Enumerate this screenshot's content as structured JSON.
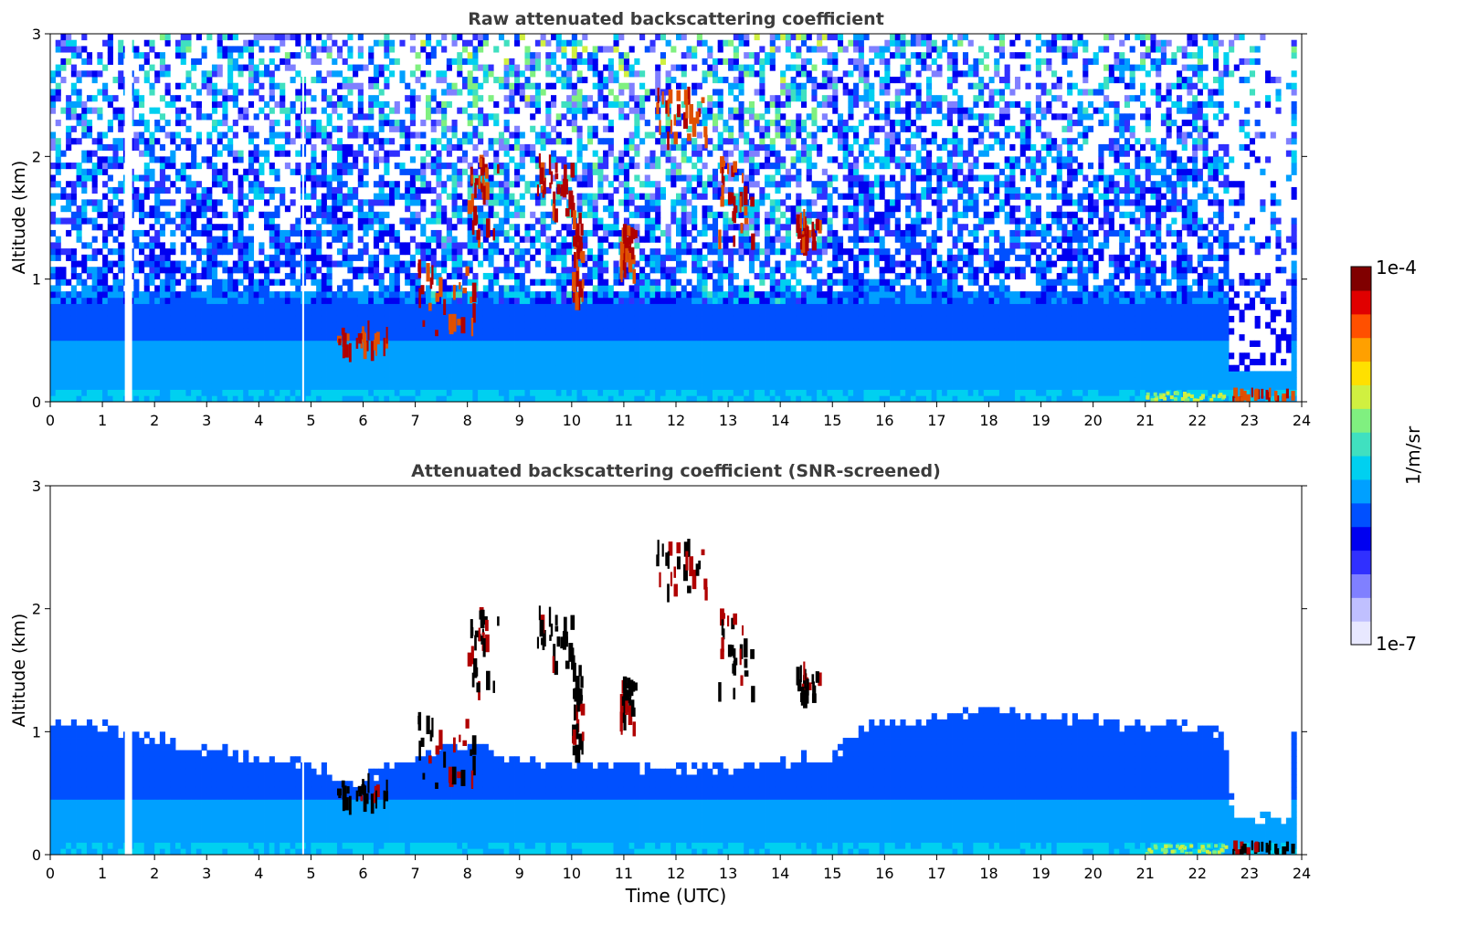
{
  "colorbar": {
    "label": "1/m/sr",
    "max_label": "1e-4",
    "min_label": "1e-7",
    "colormap": [
      "#e8e8ff",
      "#c0c0ff",
      "#8080ff",
      "#3030ff",
      "#0000f0",
      "#0050ff",
      "#00a0ff",
      "#00d0f0",
      "#40e0c0",
      "#80f080",
      "#d0f040",
      "#ffe000",
      "#ffa000",
      "#ff5000",
      "#e00000",
      "#800000"
    ]
  },
  "chart_data": [
    {
      "type": "heatmap",
      "title": "Raw attenuated backscattering coefficient",
      "xlabel": "",
      "ylabel": "Altitude (km)",
      "xlim": [
        0,
        24
      ],
      "ylim": [
        0,
        3
      ],
      "xticks": [
        "0",
        "1",
        "2",
        "3",
        "4",
        "5",
        "6",
        "7",
        "8",
        "9",
        "10",
        "11",
        "12",
        "13",
        "14",
        "15",
        "16",
        "17",
        "18",
        "19",
        "20",
        "21",
        "22",
        "23",
        "24"
      ],
      "yticks": [
        "0",
        "1",
        "2",
        "3"
      ],
      "colorscale": {
        "min": "1e-7",
        "max": "1e-4",
        "unit": "1/m/sr",
        "log": true
      },
      "data_gaps_time": [
        1.5,
        4.85
      ],
      "cloud_features": [
        {
          "t": [
            5.5,
            6.5
          ],
          "alt": [
            0.4,
            0.6
          ]
        },
        {
          "t": [
            7.0,
            8.1
          ],
          "alt": [
            0.55,
            1.1
          ]
        },
        {
          "t": [
            8.0,
            8.6
          ],
          "alt": [
            1.2,
            2.0
          ]
        },
        {
          "t": [
            9.3,
            10.1
          ],
          "alt": [
            1.5,
            2.0
          ]
        },
        {
          "t": [
            10.0,
            10.2
          ],
          "alt": [
            0.8,
            1.5
          ]
        },
        {
          "t": [
            10.9,
            11.2
          ],
          "alt": [
            1.0,
            1.4
          ]
        },
        {
          "t": [
            11.6,
            12.6
          ],
          "alt": [
            2.1,
            2.5
          ]
        },
        {
          "t": [
            12.8,
            13.5
          ],
          "alt": [
            1.3,
            2.0
          ]
        },
        {
          "t": [
            14.3,
            14.8
          ],
          "alt": [
            1.25,
            1.5
          ]
        },
        {
          "t": [
            22.6,
            23.8
          ],
          "alt": [
            0.0,
            0.08
          ]
        }
      ]
    },
    {
      "type": "heatmap",
      "title": "Attenuated backscattering coefficient (SNR-screened)",
      "xlabel": "Time (UTC)",
      "ylabel": "Altitude (km)",
      "xlim": [
        0,
        24
      ],
      "ylim": [
        0,
        3
      ],
      "xticks": [
        "0",
        "1",
        "2",
        "3",
        "4",
        "5",
        "6",
        "7",
        "8",
        "9",
        "10",
        "11",
        "12",
        "13",
        "14",
        "15",
        "16",
        "17",
        "18",
        "19",
        "20",
        "21",
        "22",
        "23",
        "24"
      ],
      "yticks": [
        "0",
        "1",
        "2",
        "3"
      ],
      "colorscale": {
        "min": "1e-7",
        "max": "1e-4",
        "unit": "1/m/sr",
        "log": true
      },
      "screened_top_km": [
        [
          0,
          1.1
        ],
        [
          1,
          1.05
        ],
        [
          2,
          0.95
        ],
        [
          3,
          0.85
        ],
        [
          4,
          0.8
        ],
        [
          5,
          0.75
        ],
        [
          5.8,
          0.55
        ],
        [
          6.5,
          0.75
        ],
        [
          7,
          0.8
        ],
        [
          8,
          0.9
        ],
        [
          9,
          0.8
        ],
        [
          10,
          0.75
        ],
        [
          11,
          0.75
        ],
        [
          12,
          0.7
        ],
        [
          13,
          0.7
        ],
        [
          14,
          0.75
        ],
        [
          15,
          0.8
        ],
        [
          15.5,
          1.0
        ],
        [
          16,
          1.05
        ],
        [
          17,
          1.1
        ],
        [
          18,
          1.2
        ],
        [
          19,
          1.1
        ],
        [
          20,
          1.1
        ],
        [
          21,
          1.05
        ],
        [
          22,
          1.05
        ],
        [
          22.5,
          1.0
        ],
        [
          22.7,
          0.3
        ],
        [
          23.8,
          0.3
        ]
      ]
    }
  ]
}
